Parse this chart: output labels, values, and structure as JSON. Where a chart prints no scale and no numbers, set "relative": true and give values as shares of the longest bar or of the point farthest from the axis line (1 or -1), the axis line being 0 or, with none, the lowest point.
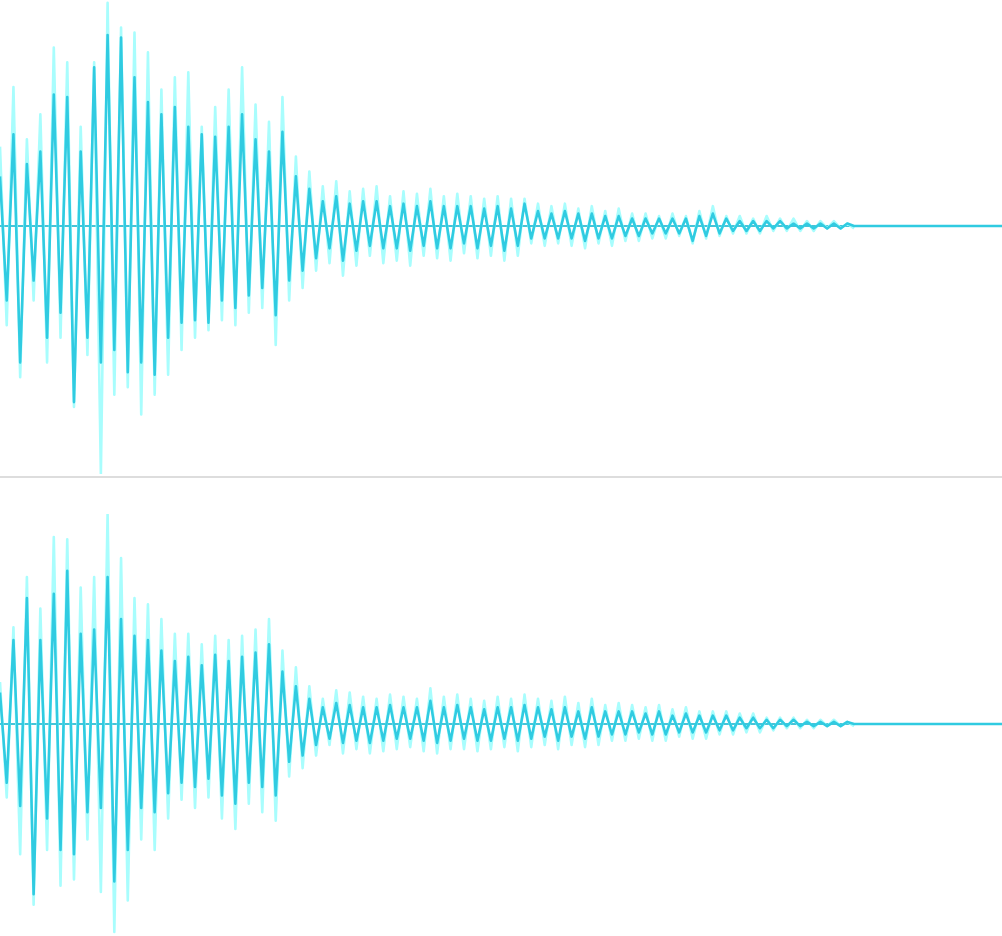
{
  "chart_data": [
    {
      "type": "line",
      "relative": true,
      "tick_labels": false,
      "ref_lines": [
        {
          "axis": "y",
          "value": 0,
          "color": "#45c4d8"
        }
      ],
      "categories": [
        null,
        null,
        null,
        null,
        null,
        null,
        null,
        null,
        null,
        null,
        null,
        null,
        null,
        null,
        null,
        null,
        null,
        null,
        null,
        null,
        null,
        null,
        null,
        null,
        null,
        null,
        null,
        null,
        null,
        null,
        null,
        null,
        null,
        null,
        null,
        null,
        null,
        null,
        null,
        null,
        null,
        null,
        null,
        null,
        null,
        null,
        null,
        null,
        null,
        null,
        null,
        null,
        null,
        null,
        null,
        null,
        null,
        null,
        null,
        null,
        null,
        null,
        null,
        null,
        null,
        null,
        null,
        null,
        null,
        null,
        null,
        null,
        null,
        null,
        null,
        null,
        null,
        null,
        null,
        null,
        null,
        null,
        null,
        null,
        null,
        null,
        null,
        null,
        null,
        null,
        null,
        null,
        null,
        null,
        null,
        null,
        null,
        null,
        null,
        null,
        null,
        null,
        null,
        null,
        null,
        null,
        null,
        null,
        null,
        null,
        null,
        null,
        null,
        null,
        null,
        null,
        null,
        null,
        null,
        null,
        null,
        null,
        null,
        null,
        null,
        null,
        null,
        null,
        null,
        null,
        null,
        null,
        null,
        null,
        null,
        null,
        null,
        null,
        null,
        null,
        null,
        null,
        null,
        null,
        null,
        null,
        null,
        null,
        null,
        null
      ],
      "series": [
        {
          "color": "#a8fdfd",
          "values": [
            0.32,
            -0.4,
            0.56,
            -0.61,
            0.35,
            -0.3,
            0.45,
            -0.55,
            0.72,
            -0.45,
            0.66,
            -0.73,
            0.4,
            -0.52,
            0.66,
            -1.0,
            0.9,
            -0.68,
            0.8,
            -0.65,
            0.78,
            -0.76,
            0.7,
            -0.68,
            0.55,
            -0.6,
            0.6,
            -0.5,
            0.62,
            -0.45,
            0.4,
            -0.42,
            0.48,
            -0.38,
            0.55,
            -0.4,
            0.64,
            -0.35,
            0.49,
            -0.33,
            0.42,
            -0.48,
            0.52,
            -0.3,
            0.28,
            -0.25,
            0.22,
            -0.18,
            0.16,
            -0.15,
            0.18,
            -0.2,
            0.14,
            -0.16,
            0.15,
            -0.12,
            0.16,
            -0.15,
            0.12,
            -0.14,
            0.14,
            -0.16,
            0.13,
            -0.12,
            0.15,
            -0.13,
            0.12,
            -0.14,
            0.13,
            -0.11,
            0.12,
            -0.13,
            0.11,
            -0.12,
            0.12,
            -0.14,
            0.11,
            -0.12,
            0.11,
            -0.07,
            0.09,
            -0.08,
            0.08,
            -0.07,
            0.09,
            -0.08,
            0.07,
            -0.09,
            0.08,
            -0.07,
            0.06,
            -0.08,
            0.07,
            -0.06,
            0.05,
            -0.06,
            0.05,
            -0.05,
            0.04,
            -0.05,
            0.05,
            -0.04,
            0.04,
            -0.07,
            0.06,
            -0.05,
            0.08,
            -0.04,
            0.04,
            -0.03,
            0.04,
            -0.03,
            0.03,
            -0.03,
            0.04,
            -0.02,
            0.03,
            -0.02,
            0.03,
            -0.02,
            0.02,
            -0.02,
            0.02,
            -0.01,
            0.02,
            -0.01,
            0.01,
            -0.01,
            null,
            null,
            null,
            null,
            null,
            null,
            null,
            null,
            null,
            null,
            null,
            null,
            null,
            null,
            null,
            null,
            null,
            null,
            null,
            null,
            null,
            null
          ]
        },
        {
          "color": "#30cbe1",
          "values": [
            0.2,
            -0.3,
            0.37,
            -0.55,
            0.25,
            -0.22,
            0.3,
            -0.45,
            0.53,
            -0.35,
            0.52,
            -0.71,
            0.3,
            -0.45,
            0.64,
            -0.55,
            0.77,
            -0.5,
            0.76,
            -0.59,
            0.6,
            -0.55,
            0.5,
            -0.6,
            0.45,
            -0.45,
            0.48,
            -0.39,
            0.4,
            -0.38,
            0.37,
            -0.39,
            0.36,
            -0.3,
            0.4,
            -0.33,
            0.45,
            -0.28,
            0.35,
            -0.25,
            0.3,
            -0.36,
            0.38,
            -0.22,
            0.2,
            -0.18,
            0.15,
            -0.13,
            0.1,
            -0.09,
            0.12,
            -0.14,
            0.09,
            -0.1,
            0.1,
            -0.08,
            0.1,
            -0.09,
            0.08,
            -0.09,
            0.09,
            -0.1,
            0.08,
            -0.08,
            0.1,
            -0.09,
            0.08,
            -0.09,
            0.08,
            -0.07,
            0.08,
            -0.09,
            0.07,
            -0.08,
            0.08,
            -0.1,
            0.07,
            -0.08,
            0.09,
            -0.05,
            0.06,
            -0.05,
            0.05,
            -0.05,
            0.06,
            -0.05,
            0.05,
            -0.06,
            0.05,
            -0.05,
            0.04,
            -0.05,
            0.04,
            -0.04,
            0.03,
            -0.04,
            0.03,
            -0.03,
            0.03,
            -0.03,
            0.03,
            -0.03,
            0.03,
            -0.06,
            0.04,
            -0.04,
            0.05,
            -0.03,
            0.03,
            -0.02,
            0.02,
            -0.02,
            0.02,
            -0.02,
            0.02,
            -0.01,
            0.02,
            -0.01,
            0.01,
            -0.01,
            0.01,
            -0.01,
            0.01,
            -0.01,
            0.01,
            -0.01,
            0.01,
            0,
            0,
            0,
            0,
            0,
            0,
            0,
            0,
            0,
            0,
            0,
            0,
            0,
            0,
            0,
            0,
            0,
            0,
            0,
            0,
            0,
            0,
            0
          ]
        }
      ]
    },
    {
      "type": "line",
      "relative": true,
      "tick_labels": false,
      "ref_lines": [
        {
          "axis": "y",
          "value": 0,
          "color": "#45c4d8"
        }
      ],
      "categories": [
        null,
        null,
        null,
        null,
        null,
        null,
        null,
        null,
        null,
        null,
        null,
        null,
        null,
        null,
        null,
        null,
        null,
        null,
        null,
        null,
        null,
        null,
        null,
        null,
        null,
        null,
        null,
        null,
        null,
        null,
        null,
        null,
        null,
        null,
        null,
        null,
        null,
        null,
        null,
        null,
        null,
        null,
        null,
        null,
        null,
        null,
        null,
        null,
        null,
        null,
        null,
        null,
        null,
        null,
        null,
        null,
        null,
        null,
        null,
        null,
        null,
        null,
        null,
        null,
        null,
        null,
        null,
        null,
        null,
        null,
        null,
        null,
        null,
        null,
        null,
        null,
        null,
        null,
        null,
        null,
        null,
        null,
        null,
        null,
        null,
        null,
        null,
        null,
        null,
        null,
        null,
        null,
        null,
        null,
        null,
        null,
        null,
        null,
        null,
        null,
        null,
        null,
        null,
        null,
        null,
        null,
        null,
        null,
        null,
        null,
        null,
        null,
        null,
        null,
        null,
        null,
        null,
        null,
        null,
        null,
        null,
        null,
        null,
        null,
        null,
        null,
        null,
        null,
        null,
        null,
        null,
        null,
        null,
        null,
        null,
        null,
        null,
        null,
        null,
        null,
        null,
        null,
        null,
        null,
        null,
        null,
        null,
        null,
        null,
        null
      ],
      "series": [
        {
          "color": "#a8fdfd",
          "values": [
            0.2,
            -0.35,
            0.46,
            -0.62,
            0.7,
            -0.86,
            0.55,
            -0.6,
            0.89,
            -0.77,
            0.88,
            -0.74,
            0.65,
            -0.55,
            0.7,
            -0.8,
            1.0,
            -0.99,
            0.79,
            -0.84,
            0.6,
            -0.55,
            0.57,
            -0.6,
            0.5,
            -0.45,
            0.43,
            -0.36,
            0.43,
            -0.4,
            0.38,
            -0.35,
            0.42,
            -0.45,
            0.4,
            -0.5,
            0.42,
            -0.38,
            0.45,
            -0.42,
            0.5,
            -0.46,
            0.35,
            -0.25,
            0.27,
            -0.21,
            0.18,
            -0.15,
            0.12,
            -0.1,
            0.16,
            -0.14,
            0.15,
            -0.12,
            0.13,
            -0.14,
            0.12,
            -0.13,
            0.14,
            -0.12,
            0.13,
            -0.11,
            0.12,
            -0.13,
            0.17,
            -0.14,
            0.13,
            -0.12,
            0.14,
            -0.12,
            0.12,
            -0.13,
            0.11,
            -0.12,
            0.13,
            -0.11,
            0.12,
            -0.13,
            0.14,
            -0.11,
            0.12,
            -0.1,
            0.11,
            -0.12,
            0.13,
            -0.1,
            0.1,
            -0.11,
            0.12,
            -0.1,
            0.09,
            -0.08,
            0.1,
            -0.08,
            0.09,
            -0.07,
            0.08,
            -0.08,
            0.09,
            -0.08,
            0.07,
            -0.06,
            0.08,
            -0.07,
            0.06,
            -0.07,
            0.06,
            -0.05,
            0.06,
            -0.05,
            0.05,
            -0.04,
            0.05,
            -0.04,
            0.03,
            -0.03,
            0.03,
            -0.02,
            0.03,
            -0.02,
            0.02,
            -0.02,
            0.02,
            -0.01,
            0.02,
            -0.01,
            0.01,
            -0.01,
            null,
            null,
            null,
            null,
            null,
            null,
            null,
            null,
            null,
            null,
            null,
            null,
            null,
            null,
            null,
            null,
            null,
            null,
            null,
            null,
            null,
            null
          ]
        },
        {
          "color": "#30cbe1",
          "values": [
            0.15,
            -0.28,
            0.4,
            -0.39,
            0.6,
            -0.81,
            0.4,
            -0.45,
            0.62,
            -0.6,
            0.73,
            -0.62,
            0.43,
            -0.42,
            0.45,
            -0.4,
            0.7,
            -0.75,
            0.5,
            -0.6,
            0.42,
            -0.4,
            0.4,
            -0.42,
            0.35,
            -0.33,
            0.3,
            -0.28,
            0.32,
            -0.3,
            0.28,
            -0.26,
            0.33,
            -0.34,
            0.3,
            -0.38,
            0.32,
            -0.28,
            0.34,
            -0.3,
            0.38,
            -0.34,
            0.25,
            -0.18,
            0.18,
            -0.15,
            0.12,
            -0.1,
            0.08,
            -0.07,
            0.1,
            -0.09,
            0.09,
            -0.08,
            0.08,
            -0.09,
            0.08,
            -0.08,
            0.09,
            -0.07,
            0.08,
            -0.07,
            0.08,
            -0.08,
            0.11,
            -0.09,
            0.08,
            -0.08,
            0.09,
            -0.07,
            0.08,
            -0.08,
            0.07,
            -0.08,
            0.08,
            -0.07,
            0.08,
            -0.08,
            0.09,
            -0.07,
            0.08,
            -0.06,
            0.07,
            -0.08,
            0.08,
            -0.06,
            0.06,
            -0.07,
            0.08,
            -0.06,
            0.06,
            -0.05,
            0.06,
            -0.05,
            0.06,
            -0.04,
            0.05,
            -0.05,
            0.06,
            -0.05,
            0.04,
            -0.04,
            0.05,
            -0.04,
            0.04,
            -0.04,
            0.04,
            -0.03,
            0.04,
            -0.03,
            0.03,
            -0.02,
            0.03,
            -0.02,
            0.02,
            -0.02,
            0.02,
            -0.01,
            0.02,
            -0.01,
            0.01,
            -0.01,
            0.01,
            -0.01,
            0.01,
            -0.01,
            0.01,
            0,
            0,
            0,
            0,
            0,
            0,
            0,
            0,
            0,
            0,
            0,
            0,
            0,
            0,
            0,
            0,
            0,
            0,
            0,
            0,
            0,
            0,
            0
          ]
        }
      ]
    }
  ]
}
